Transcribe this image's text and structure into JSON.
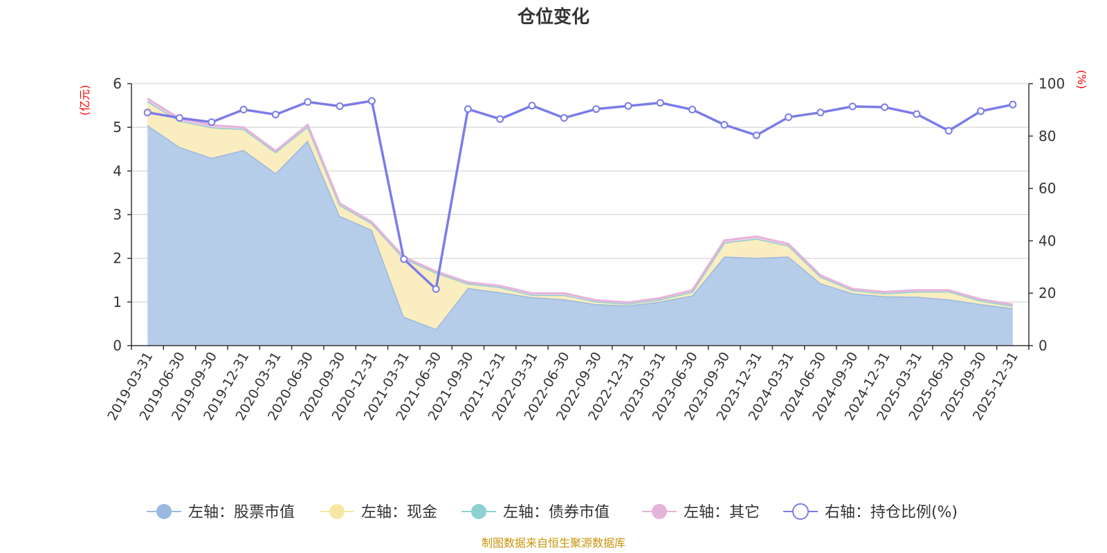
{
  "chart_data": {
    "type": "area",
    "title": "仓位变化",
    "y_left_unit": "(亿元)",
    "y_right_unit": "(%)",
    "y_left_range": [
      0,
      6
    ],
    "y_left_ticks": [
      "0",
      "1",
      "2",
      "3",
      "4",
      "5",
      "6"
    ],
    "y_right_range": [
      0,
      100
    ],
    "y_right_ticks": [
      "0",
      "20",
      "40",
      "60",
      "80",
      "100"
    ],
    "grid": true,
    "legend_position": "bottom",
    "categories": [
      "2019-03-31",
      "2019-06-30",
      "2019-09-30",
      "2019-12-31",
      "2020-03-31",
      "2020-06-30",
      "2020-09-30",
      "2020-12-31",
      "2021-03-31",
      "2021-06-30",
      "2021-09-30",
      "2021-12-31",
      "2022-03-31",
      "2022-06-30",
      "2022-09-30",
      "2022-12-31",
      "2023-03-31",
      "2023-06-30",
      "2023-09-30",
      "2023-12-31",
      "2024-03-31",
      "2024-06-30",
      "2024-09-30",
      "2024-12-31",
      "2025-03-31",
      "2025-06-30",
      "2025-09-30",
      "2025-12-31"
    ],
    "series": [
      {
        "name": "左轴：股票市值",
        "axis": "left",
        "stack": true,
        "color": "#9bb8e0",
        "fill": "#b6cdea",
        "values": [
          5.05,
          4.55,
          4.3,
          4.48,
          3.95,
          4.7,
          2.97,
          2.65,
          0.66,
          0.38,
          1.32,
          1.22,
          1.11,
          1.06,
          0.95,
          0.92,
          1.01,
          1.15,
          2.04,
          2.01,
          2.04,
          1.43,
          1.2,
          1.13,
          1.12,
          1.06,
          0.95,
          0.86
        ]
      },
      {
        "name": "左轴：现金",
        "axis": "left",
        "stack": true,
        "color": "#f7e7a5",
        "fill": "#faedbf",
        "values": [
          0.55,
          0.6,
          0.7,
          0.48,
          0.48,
          0.32,
          0.25,
          0.15,
          1.34,
          1.29,
          0.1,
          0.12,
          0.05,
          0.1,
          0.06,
          0.04,
          0.05,
          0.08,
          0.32,
          0.44,
          0.25,
          0.15,
          0.07,
          0.07,
          0.12,
          0.18,
          0.08,
          0.05
        ]
      },
      {
        "name": "左轴：债券市值",
        "axis": "left",
        "stack": true,
        "color": "#8fd0d0",
        "fill": "#b3e0e0",
        "values": [
          0,
          0,
          0,
          0,
          0,
          0,
          0,
          0,
          0,
          0,
          0,
          0,
          0,
          0,
          0,
          0,
          0,
          0,
          0,
          0,
          0,
          0,
          0,
          0,
          0,
          0,
          0,
          0
        ]
      },
      {
        "name": "左轴：其它",
        "axis": "left",
        "stack": true,
        "color": "#e6b3da",
        "fill": "#f0cfe8",
        "values": [
          0.06,
          0.05,
          0.05,
          0.04,
          0.03,
          0.04,
          0.04,
          0.03,
          0.03,
          0.03,
          0.03,
          0.03,
          0.04,
          0.04,
          0.03,
          0.03,
          0.03,
          0.04,
          0.05,
          0.05,
          0.04,
          0.03,
          0.03,
          0.03,
          0.03,
          0.03,
          0.03,
          0.03
        ]
      },
      {
        "name": "右轴：持仓比例(%)",
        "axis": "right",
        "type": "line",
        "color": "#7b7be8",
        "values": [
          89.0,
          86.9,
          85.3,
          90.1,
          88.2,
          93.0,
          91.4,
          93.4,
          33.0,
          21.6,
          90.3,
          86.5,
          91.6,
          86.9,
          90.3,
          91.5,
          92.7,
          90.1,
          84.3,
          80.3,
          87.2,
          89.0,
          91.3,
          91.0,
          88.4,
          82.0,
          89.5,
          92.0
        ]
      }
    ]
  },
  "footer": {
    "source": "制图数据来自恒生聚源数据库"
  }
}
